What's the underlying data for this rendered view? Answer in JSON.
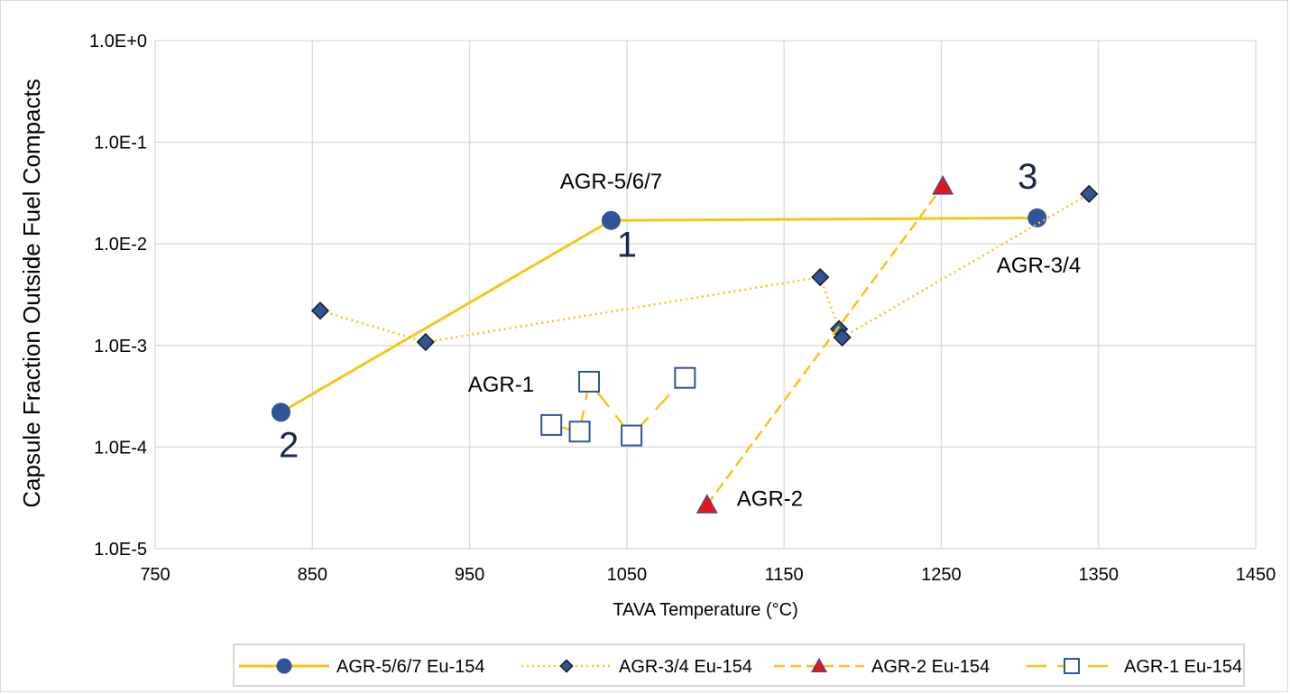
{
  "chart_data": {
    "type": "scatter",
    "title": "",
    "xlabel": "TAVA Temperature (°C)",
    "ylabel": "Capsule Fraction Outside Fuel Compacts",
    "xlim": [
      750,
      1450
    ],
    "ylim": [
      1e-05,
      1
    ],
    "yscale": "log",
    "x_ticks": [
      750,
      850,
      950,
      1050,
      1150,
      1250,
      1350,
      1450
    ],
    "y_tick_values": [
      1e-05,
      0.0001,
      0.001,
      0.01,
      0.1,
      1
    ],
    "y_tick_labels": [
      "1.0E-5",
      "1.0E-4",
      "1.0E-3",
      "1.0E-2",
      "1.0E-1",
      "1.0E+0"
    ],
    "grid": true,
    "legend_position": "bottom",
    "series": [
      {
        "name": "AGR-5/6/7 Eu-154",
        "marker": "circle",
        "line": "solid",
        "line_color": "#f5c518",
        "marker_fill": "#2f5597",
        "marker_stroke": "#2f5597",
        "x": [
          830,
          1040,
          1311
        ],
        "y": [
          0.00022,
          0.017,
          0.018
        ]
      },
      {
        "name": "AGR-3/4 Eu-154",
        "marker": "diamond",
        "line": "dotted",
        "line_color": "#f5c518",
        "marker_fill": "#2f5597",
        "marker_stroke": "#1a1a1a",
        "x": [
          855,
          922,
          1173,
          1185,
          1187,
          1344
        ],
        "y": [
          0.0022,
          0.00108,
          0.0047,
          0.00145,
          0.0012,
          0.031
        ]
      },
      {
        "name": "AGR-2 Eu-154",
        "marker": "triangle",
        "line": "dashed",
        "line_color": "#f5c518",
        "marker_fill": "#e8141a",
        "marker_stroke": "#2f5597",
        "x": [
          1101,
          1251
        ],
        "y": [
          2.7e-05,
          0.037
        ]
      },
      {
        "name": "AGR-1 Eu-154",
        "marker": "square-open",
        "line": "longdash",
        "line_color": "#f5c518",
        "marker_fill": "#ffffff",
        "marker_stroke": "#2f5597",
        "x": [
          1002,
          1020,
          1026,
          1053,
          1087
        ],
        "y": [
          0.000165,
          0.000142,
          0.00044,
          0.00013,
          0.00048
        ]
      }
    ],
    "annotations": [
      {
        "text": "AGR-5/6/7",
        "x": 1040,
        "y": 0.035,
        "style": "label"
      },
      {
        "text": "1",
        "x": 1050,
        "y": 0.0075,
        "style": "number"
      },
      {
        "text": "2",
        "x": 835,
        "y": 8e-05,
        "style": "number"
      },
      {
        "text": "3",
        "x": 1305,
        "y": 0.035,
        "style": "number"
      },
      {
        "text": "AGR-3/4",
        "x": 1312,
        "y": 0.0052,
        "style": "label"
      },
      {
        "text": "AGR-1",
        "x": 970,
        "y": 0.00035,
        "style": "label"
      },
      {
        "text": "AGR-2",
        "x": 1141,
        "y": 2.65e-05,
        "style": "label"
      }
    ]
  }
}
